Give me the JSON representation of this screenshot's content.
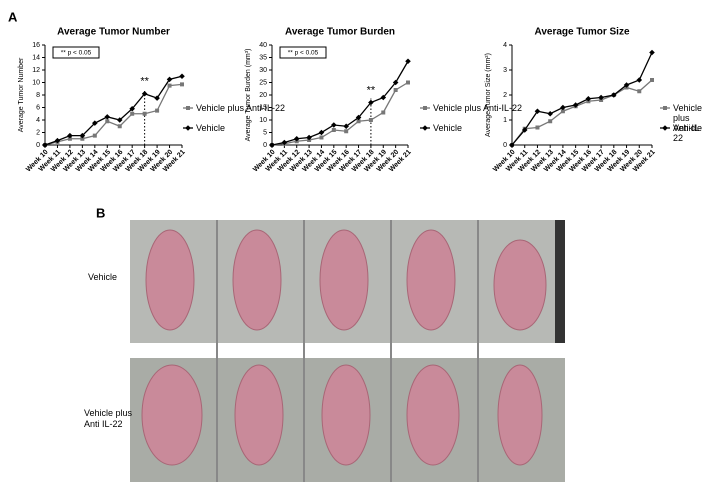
{
  "panel_labels": [
    "A",
    "B"
  ],
  "chart_data": [
    {
      "type": "line",
      "title": "Average Tumor Number",
      "y_label": "Average Tumor Number",
      "categories": [
        "Week 10",
        "Week 11",
        "Week 12",
        "Week 13",
        "Week 14",
        "Week 15",
        "Week 16",
        "Week 17",
        "Week 18",
        "Week 19",
        "Week 20",
        "Week 21"
      ],
      "series": [
        {
          "name": "Vehicle plus Anti-IL-22",
          "color": "#777777",
          "marker": "square",
          "values": [
            0,
            0.5,
            1,
            1,
            1.5,
            3.8,
            3,
            5,
            5,
            5.5,
            9.5,
            9.7
          ]
        },
        {
          "name": "Vehicle",
          "color": "#000000",
          "marker": "diamond",
          "values": [
            0,
            0.7,
            1.5,
            1.5,
            3.5,
            4.5,
            4,
            5.8,
            8.2,
            7.5,
            10.5,
            11
          ]
        }
      ],
      "ylim": [
        0,
        16
      ],
      "yticks": [
        0,
        2,
        4,
        6,
        8,
        10,
        12,
        14,
        16
      ],
      "note": "** p < 0.05",
      "annotation": {
        "text": "**",
        "x": "Week 18"
      }
    },
    {
      "type": "line",
      "title": "Average Tumor Burden",
      "y_label": "Average Tumor Burden (mm³)",
      "categories": [
        "Week 10",
        "Week 11",
        "Week 12",
        "Week 13",
        "Week 14",
        "Week 15",
        "Week 16",
        "Week 17",
        "Week 18",
        "Week 19",
        "Week 20",
        "Week 21"
      ],
      "series": [
        {
          "name": "Vehicle plus Anti-IL-22",
          "color": "#777777",
          "marker": "square",
          "values": [
            0,
            0.5,
            1.5,
            2,
            3,
            6,
            5.5,
            9.5,
            10,
            13,
            22,
            25
          ]
        },
        {
          "name": "Vehicle",
          "color": "#000000",
          "marker": "diamond",
          "values": [
            0,
            1,
            2.5,
            3,
            5,
            8,
            7.5,
            11,
            17,
            19,
            25,
            33.5
          ]
        }
      ],
      "ylim": [
        0,
        40
      ],
      "yticks": [
        0,
        5,
        10,
        15,
        20,
        25,
        30,
        35,
        40
      ],
      "note": "** p < 0.05",
      "annotation": {
        "text": "**",
        "x": "Week 18"
      }
    },
    {
      "type": "line",
      "title": "Average Tumor Size",
      "y_label": "Average Tumor Size (mm²)",
      "categories": [
        "Week 10",
        "Week 11",
        "Week 12",
        "Week 13",
        "Week 14",
        "Week 15",
        "Week 16",
        "Week 17",
        "Week 18",
        "Week 19",
        "Week 20",
        "Week 21"
      ],
      "series": [
        {
          "name": "Vehicle plus Anti-IL-22",
          "color": "#777777",
          "marker": "square",
          "values": [
            0,
            0.65,
            0.7,
            0.95,
            1.35,
            1.55,
            1.75,
            1.8,
            2,
            2.3,
            2.15,
            2.6
          ]
        },
        {
          "name": "Vehicle",
          "color": "#000000",
          "marker": "diamond",
          "values": [
            0,
            0.6,
            1.35,
            1.25,
            1.5,
            1.6,
            1.85,
            1.9,
            2,
            2.4,
            2.6,
            3.7
          ]
        }
      ],
      "ylim": [
        0,
        4
      ],
      "yticks": [
        0,
        1,
        2,
        3,
        4
      ]
    }
  ],
  "photo_rows": [
    {
      "label": "Vehicle"
    },
    {
      "label": "Vehicle plus Anti IL-22"
    }
  ]
}
